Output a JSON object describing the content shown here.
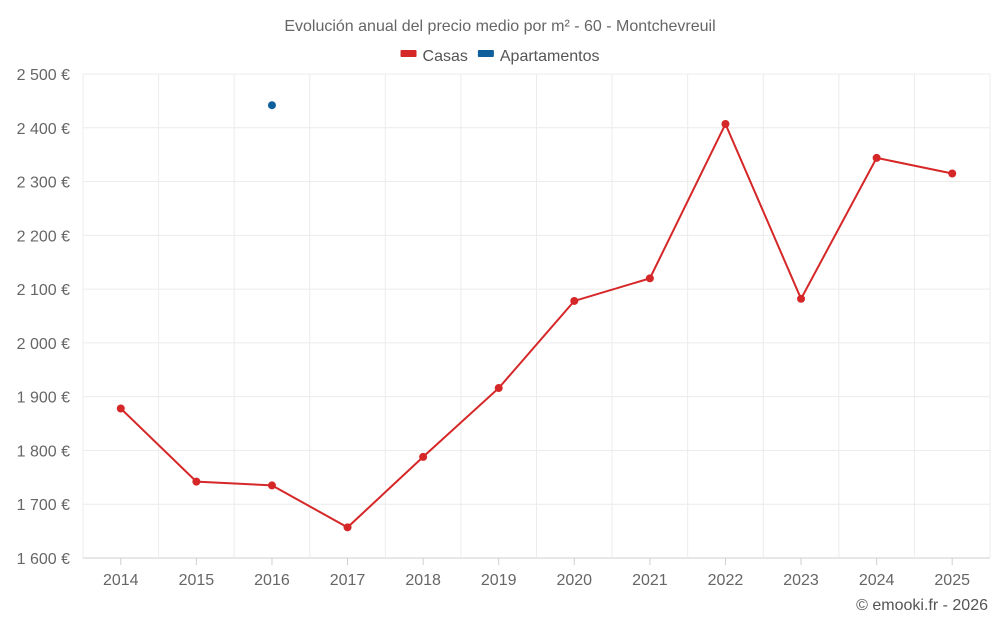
{
  "chart_data": {
    "type": "line",
    "title": "Evolución anual del precio medio por m² - 60 - Montchevreuil",
    "categories": [
      "2014",
      "2015",
      "2016",
      "2017",
      "2018",
      "2019",
      "2020",
      "2021",
      "2022",
      "2023",
      "2024",
      "2025"
    ],
    "series": [
      {
        "name": "Casas",
        "color": "#d62728",
        "values": [
          1878,
          1742,
          1735,
          1657,
          1788,
          1916,
          2078,
          2120,
          2407,
          2082,
          2344,
          2315
        ]
      },
      {
        "name": "Apartamentos",
        "color": "#0f5f9c",
        "values": [
          null,
          null,
          2442,
          null,
          null,
          null,
          null,
          null,
          null,
          null,
          null,
          null
        ]
      }
    ],
    "ylim": [
      1600,
      2500
    ],
    "yticks": [
      1600,
      1700,
      1800,
      1900,
      2000,
      2100,
      2200,
      2300,
      2400,
      2500
    ],
    "ytick_labels": [
      "1 600 €",
      "1 700 €",
      "1 800 €",
      "1 900 €",
      "2 000 €",
      "2 100 €",
      "2 200 €",
      "2 300 €",
      "2 400 €",
      "2 500 €"
    ],
    "legend_position": "top-center",
    "grid": true,
    "xlabel": "",
    "ylabel": ""
  },
  "credit": "© emooki.fr - 2026"
}
